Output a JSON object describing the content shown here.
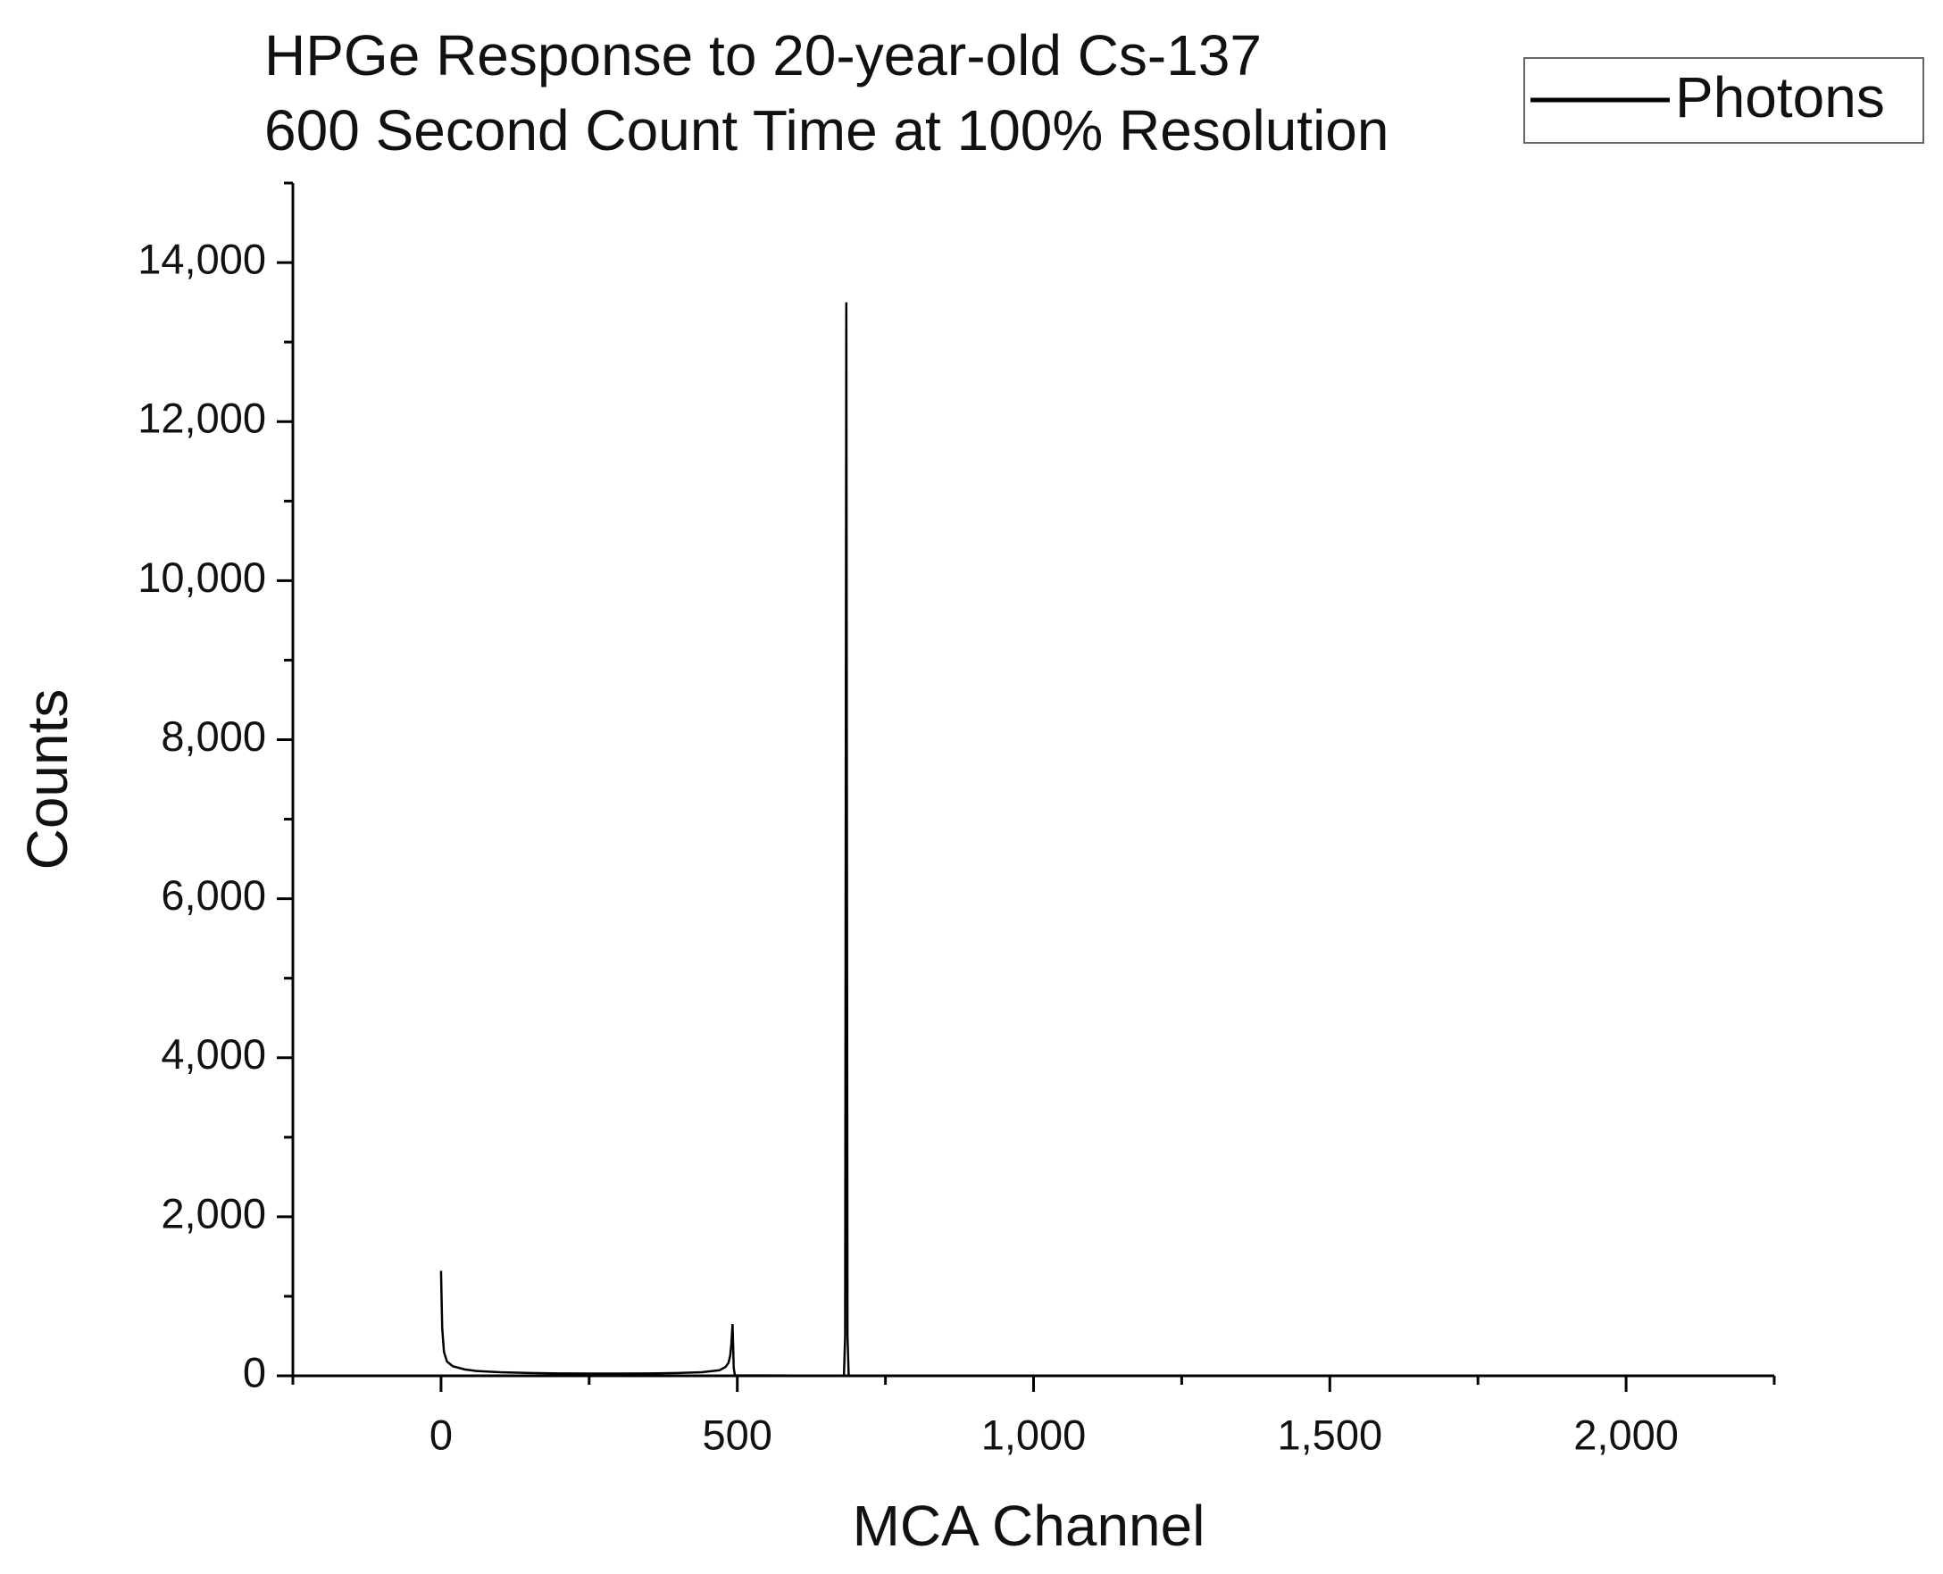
{
  "chart_data": {
    "type": "line",
    "title": "HPGe Response to 20-year-old Cs-137",
    "subtitle": "600 Second Count Time at 100% Resolution",
    "x_label": "MCA Channel",
    "y_label": "Counts",
    "xlim": [
      -250,
      2250
    ],
    "ylim": [
      0,
      15000
    ],
    "xticks": [
      0,
      500,
      {
        "value": 1000,
        "label": "1,000"
      },
      {
        "value": 1500,
        "label": "1,500"
      },
      {
        "value": 2000,
        "label": "2,000"
      }
    ],
    "xminorticks": [
      -250,
      250,
      750,
      1250,
      1750,
      2250
    ],
    "yticks": [
      0,
      {
        "value": 2000,
        "label": "2,000"
      },
      {
        "value": 4000,
        "label": "4,000"
      },
      {
        "value": 6000,
        "label": "6,000"
      },
      {
        "value": 8000,
        "label": "8,000"
      },
      {
        "value": 10000,
        "label": "10,000"
      },
      {
        "value": 12000,
        "label": "12,000"
      },
      {
        "value": 14000,
        "label": "14,000"
      }
    ],
    "yminorticks": [
      1000,
      3000,
      5000,
      7000,
      9000,
      11000,
      13000,
      15000
    ],
    "grid": false,
    "legend": "top-right",
    "x": [
      0,
      2,
      5,
      10,
      20,
      40,
      60,
      100,
      150,
      200,
      250,
      300,
      350,
      400,
      440,
      470,
      480,
      485,
      488,
      490,
      492,
      494,
      496,
      600,
      680,
      682,
      684,
      686,
      688,
      800,
      2047
    ],
    "series": [
      {
        "name": "Photons",
        "color": "#000000",
        "values": [
          1320,
          600,
          300,
          180,
          120,
          80,
          60,
          45,
          35,
          30,
          28,
          28,
          30,
          35,
          45,
          70,
          110,
          160,
          250,
          400,
          650,
          100,
          5,
          3,
          3,
          500,
          13500,
          500,
          3,
          2,
          1
        ]
      }
    ]
  }
}
